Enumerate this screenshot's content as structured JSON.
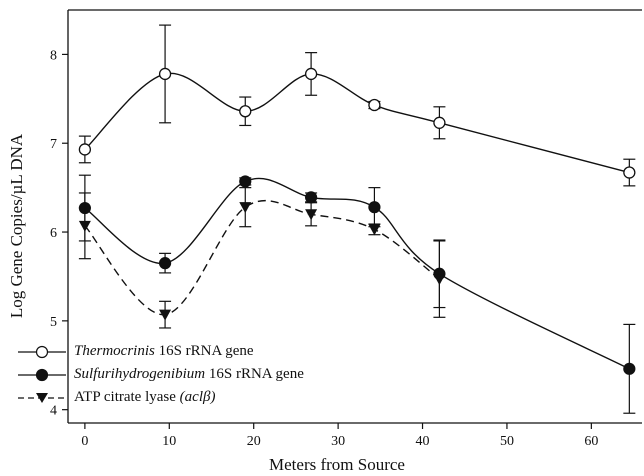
{
  "chart_data": {
    "type": "line",
    "xlabel": "Meters from Source",
    "ylabel": "Log Gene Copies/µL DNA",
    "xlim": [
      -2,
      66
    ],
    "ylim": [
      3.85,
      8.5
    ],
    "xticks": [
      "0",
      "10",
      "20",
      "30",
      "40",
      "50",
      "60"
    ],
    "yticks": [
      "4",
      "5",
      "6",
      "7",
      "8"
    ],
    "grid": false,
    "legend_position": "bottom-left",
    "series": [
      {
        "name": "Thermocrinis 16S rRNA gene",
        "name_italic": "Thermocrinis",
        "name_rest": " 16S rRNA gene",
        "marker": "open-circle",
        "line": "solid",
        "x": [
          0,
          9.5,
          19,
          26.8,
          34.3,
          42,
          64.5
        ],
        "y": [
          6.93,
          7.78,
          7.36,
          7.78,
          7.43,
          7.23,
          6.67
        ],
        "err": [
          0.15,
          0.55,
          0.16,
          0.24,
          0.04,
          0.18,
          0.15
        ]
      },
      {
        "name": "Sulfurihydrogenibium 16S rRNA gene",
        "name_italic": "Sulfurihydrogenibium",
        "name_rest": " 16S rRNA gene",
        "marker": "filled-circle",
        "line": "solid",
        "x": [
          0,
          9.5,
          19,
          26.8,
          34.3,
          42,
          64.5
        ],
        "y": [
          6.27,
          5.65,
          6.57,
          6.39,
          6.28,
          5.53,
          4.46
        ],
        "err": [
          0.37,
          0.11,
          0.04,
          0.05,
          0.22,
          0.38,
          0.5
        ]
      },
      {
        "name": "ATP citrate lyase (aclβ)",
        "name_plain": "ATP citrate lyase ",
        "name_italic_suffix": "(aclβ)",
        "marker": "filled-triangle-down",
        "line": "dashed",
        "x": [
          0,
          9.5,
          19,
          26.8,
          34.3,
          42
        ],
        "y": [
          6.07,
          5.07,
          6.28,
          6.2,
          6.03,
          5.47
        ],
        "err": [
          0.37,
          0.15,
          0.22,
          0.13,
          0.06,
          0.43
        ]
      }
    ]
  }
}
